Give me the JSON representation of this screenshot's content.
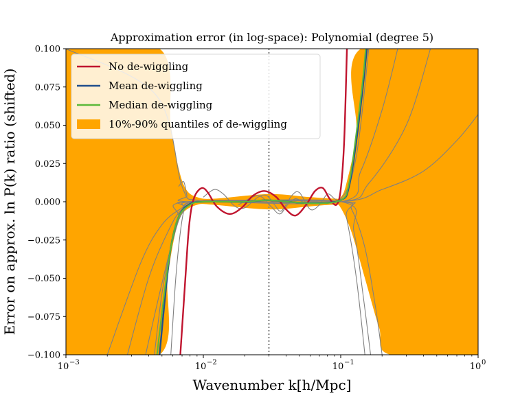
{
  "chart_data": {
    "type": "line",
    "title": "Approximation error (in log-space): Polynomial (degree 5)",
    "xlabel": "Wavenumber k[h/Mpc]",
    "ylabel": "Error on approx. ln P(k) ratio (shifted)",
    "xscale": "log",
    "xlim": [
      0.001,
      1
    ],
    "ylim": [
      -0.1,
      0.1
    ],
    "x_ticks": [
      {
        "value": 0.001,
        "base": "10",
        "exp": "−3"
      },
      {
        "value": 0.01,
        "base": "10",
        "exp": "−2"
      },
      {
        "value": 0.1,
        "base": "10",
        "exp": "−1"
      },
      {
        "value": 1,
        "base": "10",
        "exp": "0"
      }
    ],
    "y_ticks": [
      {
        "value": 0.1,
        "label": "0.100"
      },
      {
        "value": 0.075,
        "label": "0.075"
      },
      {
        "value": 0.05,
        "label": "0.050"
      },
      {
        "value": 0.025,
        "label": "0.025"
      },
      {
        "value": 0.0,
        "label": "0.000"
      },
      {
        "value": -0.025,
        "label": "−0.025"
      },
      {
        "value": -0.05,
        "label": "−0.050"
      },
      {
        "value": -0.075,
        "label": "−0.075"
      },
      {
        "value": -0.1,
        "label": "−0.100"
      }
    ],
    "reference_line": {
      "x": 0.03,
      "style": "dotted",
      "color": "#808080"
    },
    "legend": {
      "position": "upper-left",
      "entries": [
        {
          "label": "No de-wiggling",
          "color": "#c0152f",
          "kind": "line"
        },
        {
          "label": "Mean de-wiggling",
          "color": "#1f4e8c",
          "kind": "line"
        },
        {
          "label": "Median de-wiggling",
          "color": "#5cb83a",
          "kind": "line"
        },
        {
          "label": "10%-90% quantiles of de-wiggling",
          "color": "#ffa500",
          "kind": "patch"
        }
      ]
    },
    "quantile_band": {
      "color": "#ffa500",
      "upper": [
        [
          0.001,
          0.1
        ],
        [
          0.0048,
          0.1
        ],
        [
          0.0058,
          0.05
        ],
        [
          0.0066,
          0.022
        ],
        [
          0.0075,
          0.008
        ],
        [
          0.009,
          0.003
        ],
        [
          0.012,
          0.002
        ],
        [
          0.03,
          0.005
        ],
        [
          0.06,
          0.003
        ],
        [
          0.09,
          0.002
        ],
        [
          0.1,
          0.003
        ],
        [
          0.11,
          0.012
        ],
        [
          0.13,
          0.045
        ],
        [
          0.14,
          0.1
        ],
        [
          1,
          0.1
        ]
      ],
      "lower": [
        [
          0.001,
          -0.1
        ],
        [
          0.0048,
          -0.1
        ],
        [
          0.0055,
          -0.05
        ],
        [
          0.0062,
          -0.022
        ],
        [
          0.007,
          -0.008
        ],
        [
          0.009,
          -0.002
        ],
        [
          0.012,
          -0.002
        ],
        [
          0.03,
          -0.005
        ],
        [
          0.06,
          -0.003
        ],
        [
          0.09,
          -0.002
        ],
        [
          0.1,
          -0.004
        ],
        [
          0.12,
          -0.02
        ],
        [
          0.15,
          -0.05
        ],
        [
          0.19,
          -0.082
        ],
        [
          0.23,
          -0.1
        ],
        [
          1,
          -0.1
        ]
      ]
    },
    "series": [
      {
        "name": "No de-wiggling",
        "color": "#c0152f",
        "width": 2.4,
        "points": [
          [
            0.0068,
            -0.1
          ],
          [
            0.0074,
            -0.05
          ],
          [
            0.0078,
            -0.02
          ],
          [
            0.0082,
            -0.004
          ],
          [
            0.0088,
            0.005
          ],
          [
            0.0098,
            0.009
          ],
          [
            0.0108,
            0.006
          ],
          [
            0.0125,
            -0.003
          ],
          [
            0.0155,
            -0.008
          ],
          [
            0.019,
            -0.004
          ],
          [
            0.023,
            0.004
          ],
          [
            0.028,
            0.007
          ],
          [
            0.034,
            0.003
          ],
          [
            0.04,
            -0.005
          ],
          [
            0.047,
            -0.009
          ],
          [
            0.056,
            -0.002
          ],
          [
            0.065,
            0.007
          ],
          [
            0.074,
            0.009
          ],
          [
            0.083,
            0.002
          ],
          [
            0.093,
            -0.002
          ],
          [
            0.1,
            0.008
          ],
          [
            0.106,
            0.04
          ],
          [
            0.111,
            0.1
          ]
        ]
      },
      {
        "name": "Mean de-wiggling",
        "color": "#1f4e8c",
        "width": 2.4,
        "points": [
          [
            0.0048,
            -0.1
          ],
          [
            0.0053,
            -0.06
          ],
          [
            0.0058,
            -0.03
          ],
          [
            0.0066,
            -0.01
          ],
          [
            0.0078,
            -0.002
          ],
          [
            0.01,
            0.0
          ],
          [
            0.02,
            0.0
          ],
          [
            0.03,
            0.001
          ],
          [
            0.06,
            -0.001
          ],
          [
            0.1,
            0.001
          ],
          [
            0.115,
            0.01
          ],
          [
            0.13,
            0.04
          ],
          [
            0.145,
            0.075
          ],
          [
            0.155,
            0.1
          ]
        ]
      },
      {
        "name": "Median de-wiggling",
        "color": "#5cb83a",
        "width": 2.0,
        "points": [
          [
            0.0046,
            -0.1
          ],
          [
            0.0052,
            -0.06
          ],
          [
            0.0058,
            -0.03
          ],
          [
            0.0066,
            -0.01
          ],
          [
            0.008,
            -0.002
          ],
          [
            0.01,
            0.0
          ],
          [
            0.02,
            0.0
          ],
          [
            0.03,
            0.001
          ],
          [
            0.06,
            -0.001
          ],
          [
            0.1,
            0.001
          ],
          [
            0.115,
            0.012
          ],
          [
            0.13,
            0.045
          ],
          [
            0.145,
            0.08
          ],
          [
            0.152,
            0.1
          ]
        ]
      }
    ],
    "sample_curves_color": "#808080",
    "sample_curves": [
      [
        [
          0.001,
          0.1
        ],
        [
          0.0045,
          0.07
        ],
        [
          0.007,
          0.01
        ],
        [
          0.009,
          0.001
        ],
        [
          0.02,
          0.0
        ],
        [
          0.06,
          0.0
        ],
        [
          0.1,
          0.002
        ],
        [
          0.13,
          0.03
        ],
        [
          0.16,
          0.1
        ]
      ],
      [
        [
          0.002,
          -0.1
        ],
        [
          0.0035,
          -0.04
        ],
        [
          0.005,
          -0.015
        ],
        [
          0.007,
          -0.004
        ],
        [
          0.009,
          0.0
        ],
        [
          0.1,
          0.0
        ],
        [
          0.14,
          0.02
        ],
        [
          0.2,
          0.06
        ],
        [
          0.26,
          0.1
        ]
      ],
      [
        [
          0.0028,
          -0.1
        ],
        [
          0.004,
          -0.05
        ],
        [
          0.0055,
          -0.02
        ],
        [
          0.007,
          -0.005
        ],
        [
          0.01,
          0.0
        ],
        [
          0.1,
          0.0
        ],
        [
          0.16,
          0.012
        ],
        [
          0.3,
          0.05
        ],
        [
          0.45,
          0.1
        ]
      ],
      [
        [
          0.0038,
          -0.1
        ],
        [
          0.0048,
          -0.06
        ],
        [
          0.006,
          -0.025
        ],
        [
          0.0072,
          -0.006
        ],
        [
          0.01,
          0.0
        ],
        [
          0.1,
          0.0
        ],
        [
          0.2,
          0.008
        ],
        [
          0.4,
          0.02
        ],
        [
          0.7,
          0.04
        ],
        [
          1,
          0.057
        ]
      ],
      [
        [
          0.0044,
          -0.1
        ],
        [
          0.005,
          -0.06
        ],
        [
          0.0058,
          -0.03
        ],
        [
          0.0066,
          -0.01
        ],
        [
          0.0076,
          0.0
        ],
        [
          0.1,
          0.0
        ],
        [
          0.12,
          -0.005
        ],
        [
          0.15,
          -0.03
        ],
        [
          0.18,
          -0.07
        ],
        [
          0.2,
          -0.1
        ]
      ],
      [
        [
          0.0058,
          -0.1
        ],
        [
          0.0063,
          -0.05
        ],
        [
          0.0068,
          -0.02
        ],
        [
          0.0073,
          -0.004
        ],
        [
          0.008,
          0.0
        ],
        [
          0.1,
          0.0
        ],
        [
          0.11,
          -0.01
        ],
        [
          0.13,
          -0.05
        ],
        [
          0.15,
          -0.1
        ]
      ],
      [
        [
          0.0066,
          0.01
        ],
        [
          0.0072,
          0.013
        ],
        [
          0.0076,
          0.004
        ],
        [
          0.008,
          0.0
        ],
        [
          0.1,
          0.0
        ],
        [
          0.125,
          -0.02
        ],
        [
          0.145,
          -0.06
        ],
        [
          0.165,
          -0.1
        ]
      ],
      [
        [
          0.01,
          0.003
        ],
        [
          0.012,
          0.008
        ],
        [
          0.014,
          0.005
        ],
        [
          0.017,
          -0.003
        ],
        [
          0.02,
          -0.004
        ],
        [
          0.025,
          0.003
        ],
        [
          0.029,
          0.004
        ],
        [
          0.033,
          -0.002
        ],
        [
          0.037,
          -0.006
        ],
        [
          0.044,
          0.004
        ],
        [
          0.05,
          0.006
        ],
        [
          0.06,
          -0.005
        ],
        [
          0.07,
          -0.002
        ],
        [
          0.08,
          0.005
        ],
        [
          0.09,
          0.002
        ],
        [
          0.1,
          0.0
        ]
      ],
      [
        [
          0.018,
          -0.002
        ],
        [
          0.025,
          0.004
        ],
        [
          0.031,
          -0.003
        ],
        [
          0.036,
          -0.008
        ],
        [
          0.041,
          -0.002
        ],
        [
          0.047,
          0.002
        ],
        [
          0.055,
          -0.001
        ]
      ]
    ]
  }
}
